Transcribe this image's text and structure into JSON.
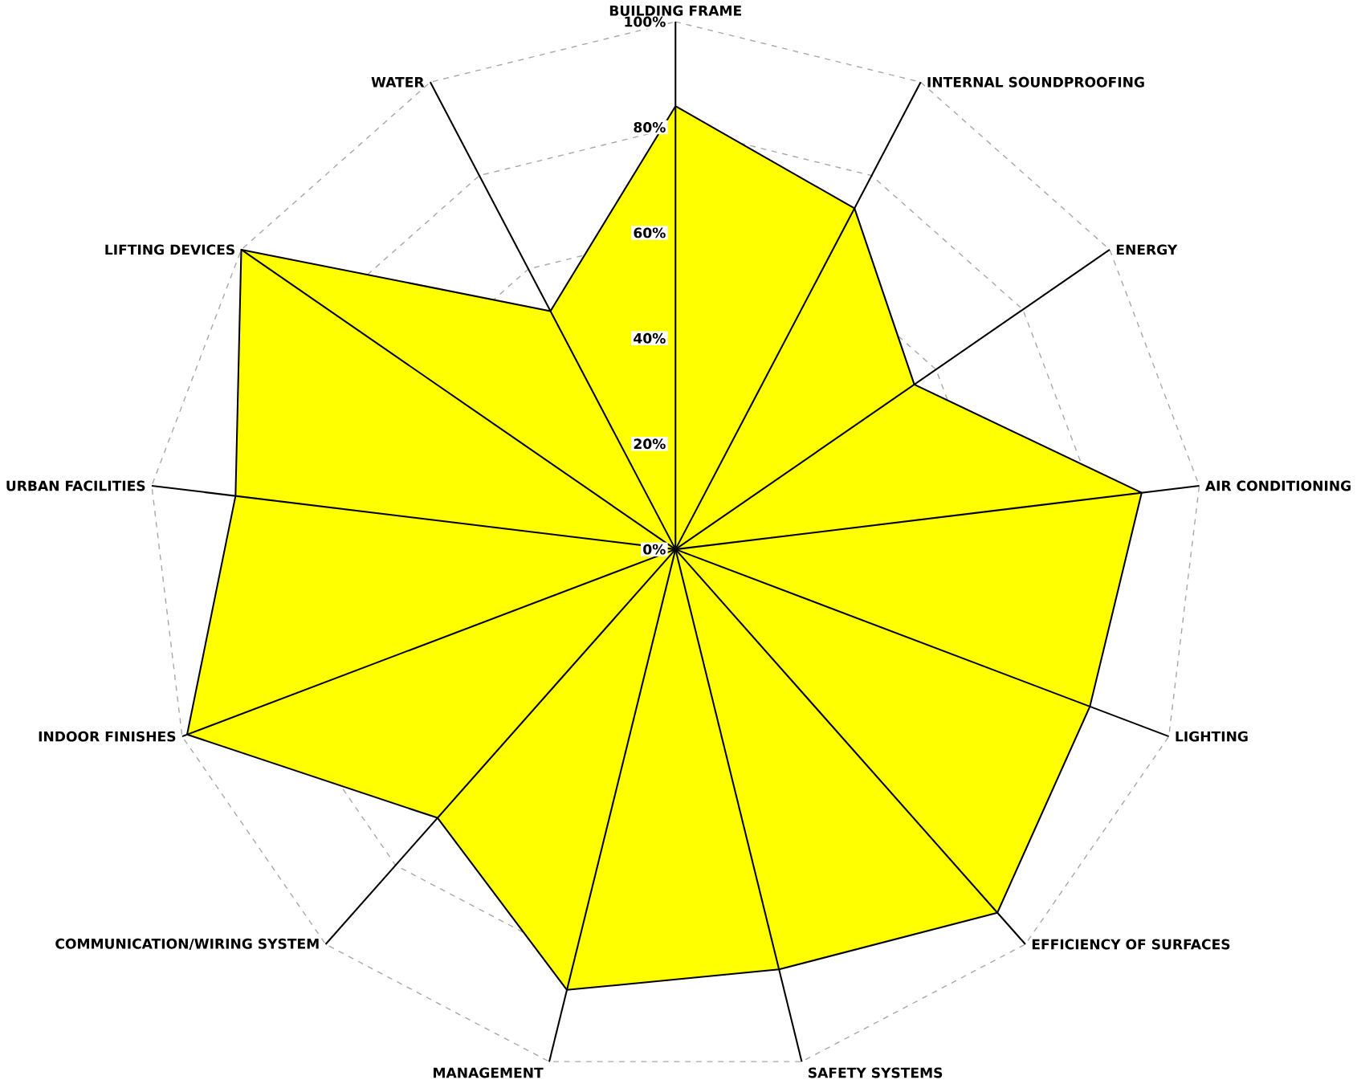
{
  "chart_data": {
    "type": "radar",
    "categories": [
      "BUILDING FRAME",
      "INTERNAL SOUNDPROOFING",
      "ENERGY",
      "AIR CONDITIONING",
      "LIGHTING",
      "EFFICIENCY OF SURFACES",
      "SAFETY SYSTEMS",
      "MANAGEMENT",
      "COMMUNICATION/WIRING SYSTEM",
      "INDOOR FINISHES",
      "URBAN FACILITIES",
      "LIFTING DEVICES",
      "WATER"
    ],
    "series": [
      {
        "color": "#ffff00",
        "values": [
          84,
          73,
          55,
          89,
          84,
          92,
          82,
          86,
          68,
          99,
          84,
          100,
          51
        ]
      }
    ],
    "ylim": [
      0,
      100
    ],
    "yticks": [
      {
        "value": 0,
        "label": "0%"
      },
      {
        "value": 20,
        "label": "20%"
      },
      {
        "value": 40,
        "label": "40%"
      },
      {
        "value": 60,
        "label": "60%"
      },
      {
        "value": 80,
        "label": "80%"
      },
      {
        "value": 100,
        "label": "100%"
      }
    ],
    "grid": true
  }
}
